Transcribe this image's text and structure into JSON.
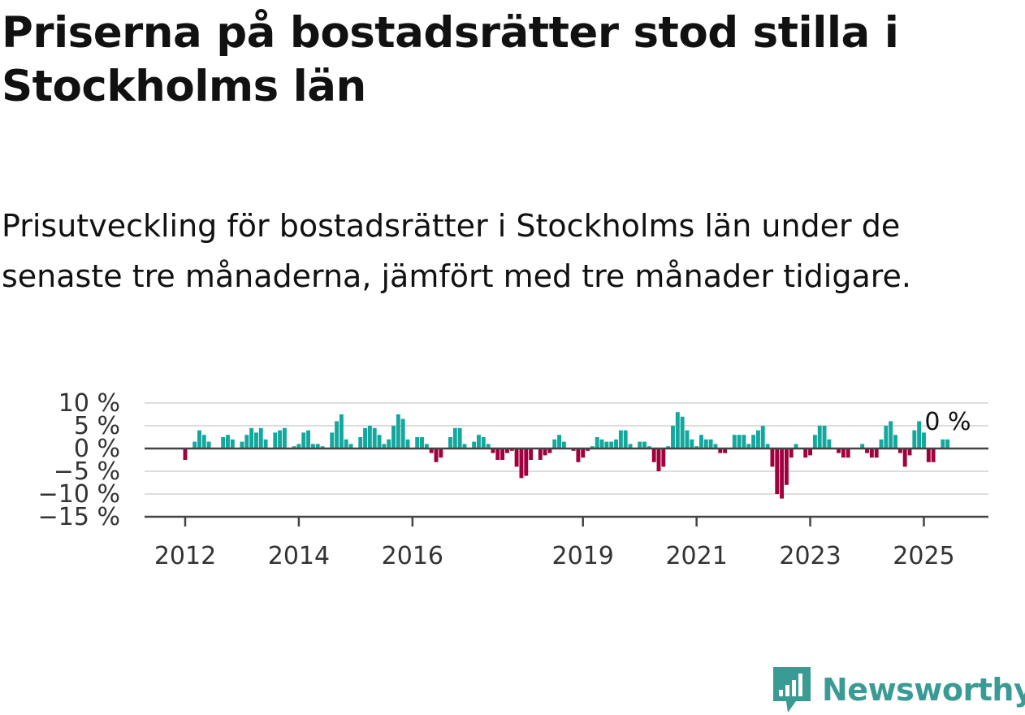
{
  "title": "Priserna på bostadsrätter stod stilla i Stockholms län",
  "subtitle": "Prisutveckling för bostadsrätter i Stockholms län under de senaste tre månaderna, jämfört med tre månader tidigare.",
  "colors": {
    "positive": "#13a89e",
    "negative": "#a1003e",
    "grid": "#dddddd",
    "zero_line": "#444444",
    "brand": "#3a9b94"
  },
  "brand": {
    "name": "Newsworthy",
    "icon": "bar-chart-speech-bubble-icon"
  },
  "chart_data": {
    "type": "bar",
    "title": "",
    "xlabel": "",
    "ylabel": "",
    "ylim": [
      -15,
      10
    ],
    "grid": true,
    "y_ticks": [
      10,
      5,
      0,
      -5,
      -10,
      -15
    ],
    "y_tick_labels": [
      "10 %",
      "5 %",
      "0 %",
      "−5 %",
      "−10 %",
      "−15 %"
    ],
    "x_ticks": [
      "2012",
      "2014",
      "2016",
      "2019",
      "2021",
      "2023",
      "2025"
    ],
    "annotation": "0 %",
    "start": "2012-01",
    "values": [
      -2.5,
      0,
      1.5,
      4,
      3,
      1.5,
      0,
      0,
      2.5,
      3,
      2,
      0,
      1.5,
      3,
      4.5,
      3.5,
      4.5,
      2,
      0,
      3.5,
      4,
      4.5,
      0,
      0.5,
      1,
      3.5,
      4,
      1,
      1,
      0.5,
      0,
      3.5,
      6,
      7.5,
      2,
      1,
      0,
      2.5,
      4.5,
      5,
      4.5,
      3,
      1,
      2,
      5,
      7.5,
      6.5,
      2,
      0,
      2.5,
      2.5,
      1,
      -1,
      -3,
      -2,
      0,
      2.5,
      4.5,
      4.5,
      1,
      0,
      1.5,
      3,
      2.5,
      1,
      -1,
      -2.5,
      -2.5,
      -1,
      -0.5,
      -4,
      -6.5,
      -6,
      -2.5,
      0,
      -2.5,
      -1.5,
      -1,
      2,
      3,
      1.5,
      0,
      -0.5,
      -3,
      -2,
      -0.5,
      0.5,
      2.5,
      2,
      1.5,
      1.5,
      2,
      4,
      4,
      1,
      0,
      1.5,
      1.5,
      0.5,
      -3,
      -5,
      -4,
      0.5,
      5,
      8,
      7,
      4,
      2,
      0.5,
      3,
      2,
      2,
      1,
      -1,
      -1,
      0,
      3,
      3,
      3,
      1,
      3,
      4,
      5,
      1,
      -4,
      -10,
      -11,
      -8,
      -2,
      1,
      0,
      -2,
      -1.5,
      3,
      5,
      5,
      2,
      0,
      -1,
      -2,
      -2,
      0,
      0,
      1,
      -1,
      -2,
      -2,
      2,
      5,
      6,
      3,
      -1,
      -4,
      -1.5,
      4,
      6,
      3.5,
      -3,
      -3,
      0,
      2,
      2
    ]
  }
}
